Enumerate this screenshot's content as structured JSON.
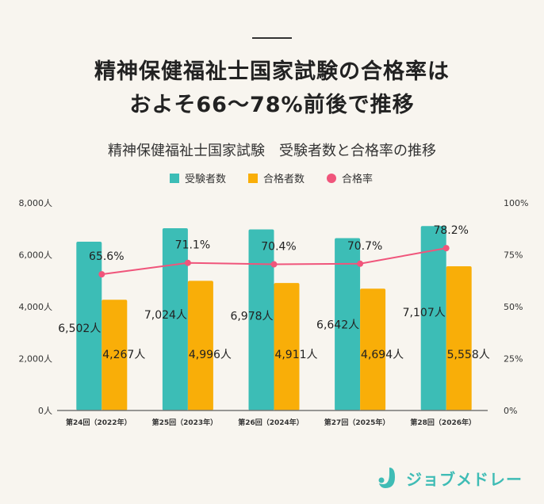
{
  "headline": {
    "line1": "精神保健福祉士国家試験の合格率は",
    "line2": "およそ66～78%前後で推移"
  },
  "logo": {
    "text": "ジョブメドレー"
  },
  "colors": {
    "examinees": "#3cbdb6",
    "passers": "#f9ae08",
    "rate": "#f0557b"
  },
  "chart_data": {
    "type": "bar",
    "title": "精神保健福祉士国家試験　受験者数と合格率の推移",
    "categories": [
      "第24回（2022年）",
      "第25回（2023年）",
      "第26回（2024年）",
      "第27回（2025年）",
      "第28回（2026年）"
    ],
    "series": [
      {
        "name": "受験者数",
        "type": "bar",
        "axis": "left",
        "values": [
          6502,
          7024,
          6978,
          6642,
          7107
        ],
        "labels": [
          "6,502人",
          "7,024人",
          "6,978人",
          "6,642人",
          "7,107人"
        ]
      },
      {
        "name": "合格者数",
        "type": "bar",
        "axis": "left",
        "values": [
          4267,
          4996,
          4911,
          4694,
          5558
        ],
        "labels": [
          "4,267人",
          "4,996人",
          "4,911人",
          "4,694人",
          "5,558人"
        ]
      },
      {
        "name": "合格率",
        "type": "line",
        "axis": "right",
        "values": [
          65.6,
          71.1,
          70.4,
          70.7,
          78.2
        ],
        "labels": [
          "65.6%",
          "71.1%",
          "70.4%",
          "70.7%",
          "78.2%"
        ]
      }
    ],
    "left_axis": {
      "range": [
        0,
        8000
      ],
      "ticks": [
        "0人",
        "2,000人",
        "4,000人",
        "6,000人",
        "8,000人"
      ]
    },
    "right_axis": {
      "range": [
        0,
        100
      ],
      "ticks": [
        "0%",
        "25%",
        "50%",
        "75%",
        "100%"
      ]
    },
    "legend_position": "top-center"
  }
}
